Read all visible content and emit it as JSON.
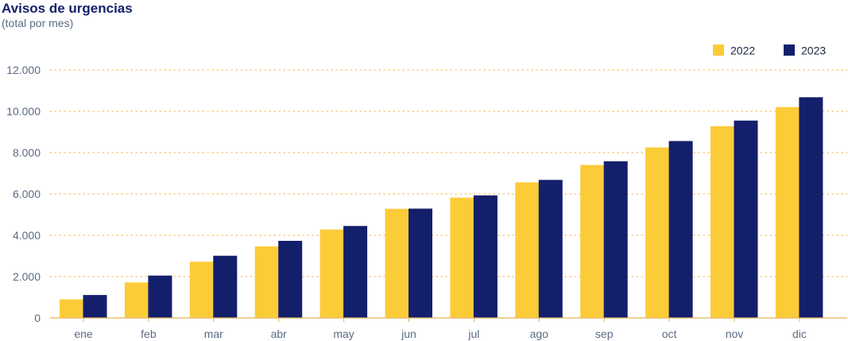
{
  "colors": {
    "series_2022": "#fccb38",
    "series_2023": "#131f6b",
    "grid": "#f2c46b",
    "axis": "#e0b45a",
    "title": "#14216b",
    "tick": "#5b6b84"
  },
  "chart_data": {
    "type": "bar",
    "title": "Avisos de urgencias",
    "subtitle": "(total por mes)",
    "xlabel": "",
    "ylabel": "",
    "ylim": [
      0,
      12000
    ],
    "yticks": [
      0,
      2000,
      4000,
      6000,
      8000,
      10000,
      12000
    ],
    "ytick_labels": [
      "0",
      "2.000",
      "4.000",
      "6.000",
      "8.000",
      "10.000",
      "12.000"
    ],
    "grid": true,
    "legend_position": "top-right",
    "categories": [
      "ene",
      "feb",
      "mar",
      "abr",
      "may",
      "jun",
      "jul",
      "ago",
      "sep",
      "oct",
      "nov",
      "dic"
    ],
    "series": [
      {
        "name": "2022",
        "color": "#fccb38",
        "values": [
          900,
          1720,
          2720,
          3460,
          4280,
          5280,
          5820,
          6560,
          7400,
          8250,
          9280,
          10200
        ]
      },
      {
        "name": "2023",
        "color": "#131f6b",
        "values": [
          1110,
          2050,
          3010,
          3730,
          4450,
          5290,
          5930,
          6680,
          7580,
          8560,
          9550,
          10680
        ]
      }
    ]
  }
}
